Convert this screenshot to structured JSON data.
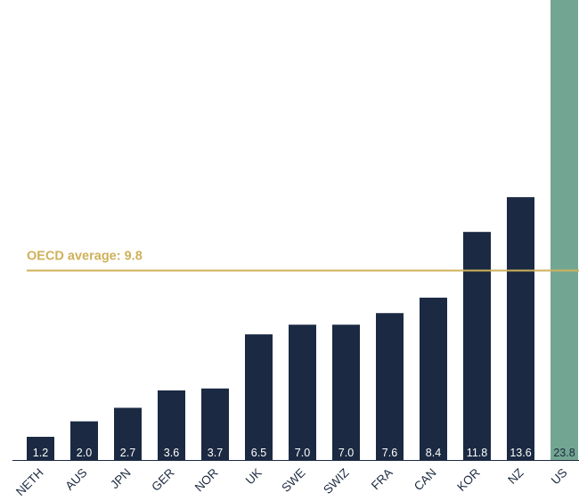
{
  "chart_data": {
    "type": "bar",
    "categories": [
      "NETH",
      "AUS",
      "JPN",
      "GER",
      "NOR",
      "UK",
      "SWE",
      "SWIZ",
      "FRA",
      "CAN",
      "KOR",
      "NZ",
      "US"
    ],
    "values": [
      1.2,
      2.0,
      2.7,
      3.6,
      3.7,
      6.5,
      7.0,
      7.0,
      7.6,
      8.4,
      11.8,
      13.6,
      23.8
    ],
    "value_labels": [
      "1.2",
      "2.0",
      "2.7",
      "3.6",
      "3.7",
      "6.5",
      "7.0",
      "7.0",
      "7.6",
      "8.4",
      "11.8",
      "13.6",
      "23.8"
    ],
    "highlight_category": "US",
    "reference_line": {
      "value": 9.8,
      "label": "OECD average: 9.8"
    },
    "title": "",
    "xlabel": "",
    "ylabel": "",
    "ylim": [
      0,
      23.8
    ],
    "grid": false,
    "legend": "none",
    "colors": {
      "bar": "#1b2a42",
      "highlight": "#73a692",
      "reference": "#cfb15a",
      "axis": "#1b2a42",
      "label_on_bar": "#ffffff",
      "label_on_highlight": "#1b2a42"
    }
  }
}
